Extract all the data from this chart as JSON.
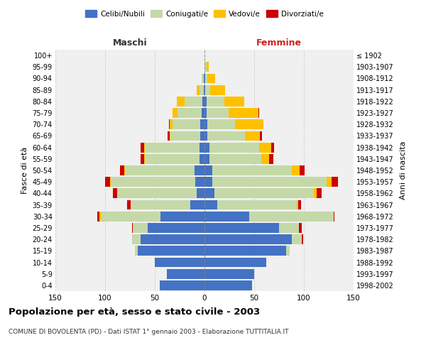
{
  "age_groups": [
    "0-4",
    "5-9",
    "10-14",
    "15-19",
    "20-24",
    "25-29",
    "30-34",
    "35-39",
    "40-44",
    "45-49",
    "50-54",
    "55-59",
    "60-64",
    "65-69",
    "70-74",
    "75-79",
    "80-84",
    "85-89",
    "90-94",
    "95-99",
    "100+"
  ],
  "birth_years": [
    "1998-2002",
    "1993-1997",
    "1988-1992",
    "1983-1987",
    "1978-1982",
    "1973-1977",
    "1968-1972",
    "1963-1967",
    "1958-1962",
    "1953-1957",
    "1948-1952",
    "1943-1947",
    "1938-1942",
    "1933-1937",
    "1928-1932",
    "1923-1927",
    "1918-1922",
    "1913-1917",
    "1908-1912",
    "1903-1907",
    "≤ 1902"
  ],
  "male": {
    "celibi": [
      45,
      38,
      50,
      67,
      64,
      57,
      44,
      14,
      8,
      9,
      10,
      5,
      5,
      4,
      4,
      3,
      2,
      1,
      1,
      0,
      0
    ],
    "coniugati": [
      0,
      0,
      0,
      3,
      9,
      15,
      60,
      60,
      80,
      85,
      70,
      55,
      55,
      30,
      28,
      24,
      18,
      4,
      2,
      0,
      0
    ],
    "vedovi": [
      0,
      0,
      0,
      0,
      0,
      0,
      2,
      0,
      0,
      1,
      1,
      1,
      1,
      1,
      3,
      5,
      8,
      3,
      0,
      0,
      0
    ],
    "divorziati": [
      0,
      0,
      0,
      0,
      0,
      1,
      2,
      4,
      4,
      5,
      4,
      3,
      3,
      2,
      1,
      0,
      0,
      0,
      0,
      0,
      0
    ]
  },
  "female": {
    "nubili": [
      48,
      50,
      62,
      82,
      88,
      75,
      45,
      13,
      10,
      8,
      8,
      5,
      5,
      3,
      3,
      2,
      2,
      1,
      1,
      0,
      0
    ],
    "coniugate": [
      0,
      0,
      0,
      4,
      10,
      20,
      85,
      80,
      100,
      115,
      80,
      52,
      50,
      38,
      28,
      22,
      18,
      5,
      2,
      2,
      0
    ],
    "vedove": [
      0,
      0,
      0,
      0,
      0,
      0,
      0,
      1,
      3,
      5,
      8,
      8,
      12,
      15,
      28,
      30,
      20,
      15,
      8,
      2,
      0
    ],
    "divorziate": [
      0,
      0,
      0,
      0,
      1,
      3,
      1,
      3,
      5,
      6,
      5,
      4,
      3,
      2,
      0,
      1,
      0,
      0,
      0,
      0,
      0
    ]
  },
  "colors": {
    "celibi": "#4472c4",
    "coniugati": "#c5d9a8",
    "vedovi": "#ffc000",
    "divorziati": "#cc0000"
  },
  "title": "Popolazione per età, sesso e stato civile - 2003",
  "subtitle": "COMUNE DI BOVOLENTA (PD) - Dati ISTAT 1° gennaio 2003 - Elaborazione TUTTITALIA.IT",
  "xlabel_left": "Maschi",
  "xlabel_right": "Femmine",
  "ylabel_left": "Fasce di età",
  "ylabel_right": "Anni di nascita",
  "xlim": 150,
  "legend_labels": [
    "Celibi/Nubili",
    "Coniugati/e",
    "Vedovi/e",
    "Divorziati/e"
  ],
  "bg_color": "#ffffff",
  "plot_bg": "#f0f0f0",
  "grid_color": "#cccccc"
}
